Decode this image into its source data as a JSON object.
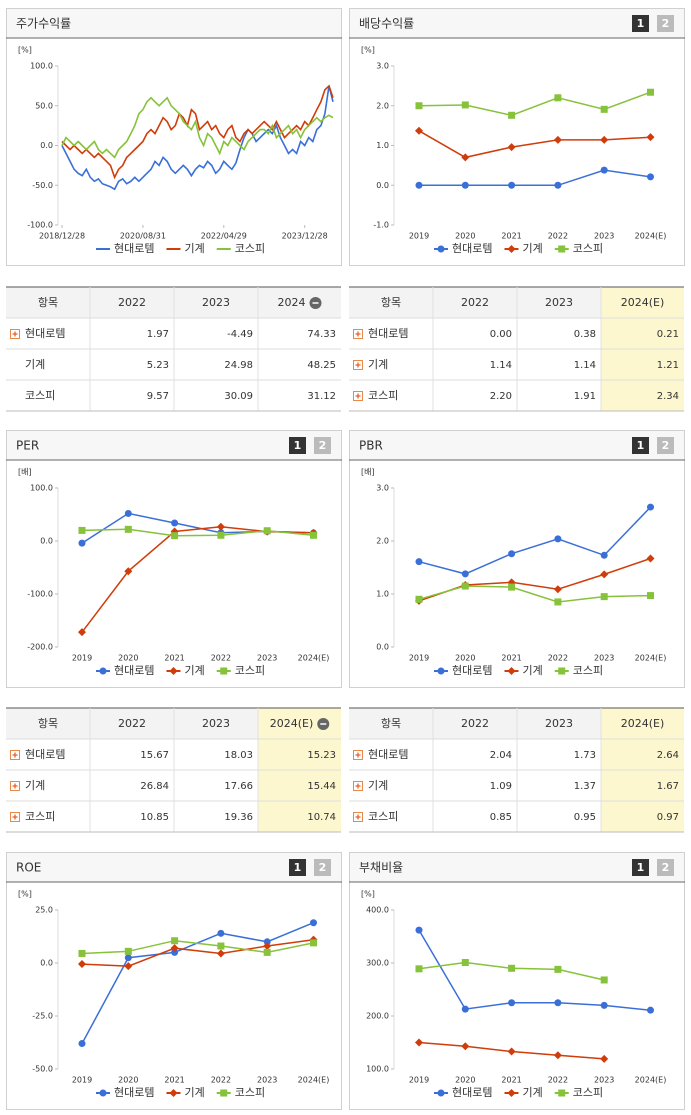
{
  "chart_data": [
    {
      "type": "timeseries",
      "title": "주가수익률",
      "unit": "[%]",
      "xlim": [
        0,
        67
      ],
      "xticks": [
        {
          "value": 0,
          "label": "2018/12/28"
        },
        {
          "value": 20,
          "label": "2020/08/31"
        },
        {
          "value": 40,
          "label": "2022/04/29"
        },
        {
          "value": 60,
          "label": "2023/12/28"
        }
      ],
      "ylim": [
        -100,
        100
      ],
      "yticks": [
        {
          "value": 100,
          "label": "100.0"
        },
        {
          "value": 50,
          "label": "50.0"
        },
        {
          "value": 0,
          "label": "0.0"
        },
        {
          "value": -50,
          "label": "-50.0"
        },
        {
          "value": -100,
          "label": "-100.0"
        }
      ],
      "markers": false,
      "series": [
        {
          "name": "현대로템",
          "color": "#3a6fd8",
          "values": [
            0,
            -10,
            -20,
            -30,
            -35,
            -38,
            -30,
            -40,
            -45,
            -42,
            -48,
            -50,
            -52,
            -55,
            -45,
            -42,
            -48,
            -45,
            -40,
            -45,
            -40,
            -35,
            -30,
            -20,
            -25,
            -15,
            -20,
            -30,
            -35,
            -30,
            -25,
            -30,
            -38,
            -30,
            -25,
            -28,
            -20,
            -25,
            -35,
            -30,
            -20,
            -25,
            -30,
            -22,
            -5,
            10,
            20,
            15,
            5,
            10,
            15,
            20,
            15,
            25,
            10,
            0,
            -10,
            -5,
            -10,
            5,
            0,
            10,
            5,
            20,
            25,
            40,
            75,
            55
          ]
        },
        {
          "name": "기계",
          "color": "#d03c0a",
          "values": [
            5,
            0,
            -5,
            0,
            -5,
            -10,
            -5,
            -10,
            -15,
            -10,
            -15,
            -20,
            -25,
            -40,
            -30,
            -25,
            -15,
            -10,
            -5,
            0,
            5,
            15,
            20,
            15,
            25,
            35,
            30,
            20,
            25,
            40,
            35,
            25,
            45,
            40,
            20,
            25,
            30,
            20,
            25,
            15,
            10,
            20,
            25,
            10,
            5,
            15,
            20,
            15,
            20,
            25,
            30,
            25,
            20,
            30,
            20,
            10,
            15,
            20,
            25,
            20,
            30,
            25,
            35,
            45,
            55,
            70,
            75,
            60
          ]
        },
        {
          "name": "코스피",
          "color": "#86c23a",
          "values": [
            0,
            10,
            5,
            0,
            5,
            0,
            -5,
            0,
            5,
            -5,
            -10,
            -5,
            -10,
            -15,
            -5,
            0,
            5,
            15,
            25,
            40,
            45,
            55,
            60,
            55,
            50,
            55,
            60,
            50,
            45,
            40,
            30,
            25,
            20,
            30,
            10,
            0,
            15,
            10,
            0,
            -10,
            5,
            0,
            10,
            5,
            0,
            -5,
            5,
            10,
            15,
            20,
            20,
            15,
            25,
            10,
            15,
            20,
            25,
            15,
            20,
            10,
            20,
            25,
            30,
            35,
            30,
            35,
            38,
            35
          ]
        }
      ]
    },
    {
      "type": "line",
      "title": "배당수익률",
      "unit": "[%]",
      "buttons": [
        "1",
        "2"
      ],
      "categories": [
        "2019",
        "2020",
        "2021",
        "2022",
        "2023",
        "2024(E)"
      ],
      "ylim": [
        -1,
        3
      ],
      "yticks": [
        {
          "value": 3,
          "label": "3.0"
        },
        {
          "value": 2,
          "label": "2.0"
        },
        {
          "value": 1,
          "label": "1.0"
        },
        {
          "value": 0,
          "label": "0.0"
        },
        {
          "value": -1,
          "label": "-1.0"
        }
      ],
      "markers": true,
      "series": [
        {
          "name": "현대로템",
          "color": "#3a6fd8",
          "values": [
            0,
            0,
            0,
            0,
            0.38,
            0.21
          ]
        },
        {
          "name": "기계",
          "color": "#d03c0a",
          "values": [
            1.37,
            0.7,
            0.96,
            1.14,
            1.14,
            1.21
          ]
        },
        {
          "name": "코스피",
          "color": "#86c23a",
          "values": [
            2.0,
            2.02,
            1.76,
            2.2,
            1.91,
            2.34
          ]
        }
      ]
    },
    {
      "type": "line",
      "title": "PER",
      "unit": "[배]",
      "buttons": [
        "1",
        "2"
      ],
      "categories": [
        "2019",
        "2020",
        "2021",
        "2022",
        "2023",
        "2024(E)"
      ],
      "ylim": [
        -200,
        100
      ],
      "yticks": [
        {
          "value": 100,
          "label": "100.0"
        },
        {
          "value": 0,
          "label": "0.0"
        },
        {
          "value": -100,
          "label": "-100.0"
        },
        {
          "value": -200,
          "label": "-200.0"
        }
      ],
      "markers": true,
      "series": [
        {
          "name": "현대로템",
          "color": "#3a6fd8",
          "values": [
            -4,
            52,
            34,
            15.67,
            18.03,
            15.23
          ]
        },
        {
          "name": "기계",
          "color": "#d03c0a",
          "values": [
            -172,
            -57,
            18,
            26.84,
            17.66,
            15.44
          ]
        },
        {
          "name": "코스피",
          "color": "#86c23a",
          "values": [
            20,
            22,
            10,
            10.85,
            19.36,
            10.74
          ]
        }
      ]
    },
    {
      "type": "line",
      "title": "PBR",
      "unit": "[배]",
      "buttons": [
        "1",
        "2"
      ],
      "categories": [
        "2019",
        "2020",
        "2021",
        "2022",
        "2023",
        "2024(E)"
      ],
      "ylim": [
        0,
        3
      ],
      "yticks": [
        {
          "value": 3,
          "label": "3.0"
        },
        {
          "value": 2,
          "label": "2.0"
        },
        {
          "value": 1,
          "label": "1.0"
        },
        {
          "value": 0,
          "label": "0.0"
        }
      ],
      "markers": true,
      "series": [
        {
          "name": "현대로템",
          "color": "#3a6fd8",
          "values": [
            1.61,
            1.38,
            1.76,
            2.04,
            1.73,
            2.64
          ]
        },
        {
          "name": "기계",
          "color": "#d03c0a",
          "values": [
            0.87,
            1.17,
            1.22,
            1.09,
            1.37,
            1.67
          ]
        },
        {
          "name": "코스피",
          "color": "#86c23a",
          "values": [
            0.9,
            1.15,
            1.13,
            0.85,
            0.95,
            0.97
          ]
        }
      ]
    },
    {
      "type": "line",
      "title": "ROE",
      "unit": "[%]",
      "buttons": [
        "1",
        "2"
      ],
      "categories": [
        "2019",
        "2020",
        "2021",
        "2022",
        "2023",
        "2024(E)"
      ],
      "ylim": [
        -50,
        25
      ],
      "yticks": [
        {
          "value": 25,
          "label": "25.0"
        },
        {
          "value": 0,
          "label": "0.0"
        },
        {
          "value": -25,
          "label": "-25.0"
        },
        {
          "value": -50,
          "label": "-50.0"
        }
      ],
      "markers": true,
      "series": [
        {
          "name": "현대로템",
          "color": "#3a6fd8",
          "values": [
            -38,
            2.5,
            5,
            14,
            10,
            19
          ]
        },
        {
          "name": "기계",
          "color": "#d03c0a",
          "values": [
            -0.5,
            -1.5,
            7,
            4.5,
            8,
            11
          ]
        },
        {
          "name": "코스피",
          "color": "#86c23a",
          "values": [
            4.5,
            5.5,
            10.5,
            8,
            5,
            9.5
          ]
        }
      ]
    },
    {
      "type": "line",
      "title": "부채비율",
      "unit": "[%]",
      "buttons": [
        "1",
        "2"
      ],
      "categories": [
        "2019",
        "2020",
        "2021",
        "2022",
        "2023",
        "2024(E)"
      ],
      "ylim": [
        100,
        400
      ],
      "yticks": [
        {
          "value": 400,
          "label": "400.0"
        },
        {
          "value": 300,
          "label": "300.0"
        },
        {
          "value": 200,
          "label": "200.0"
        },
        {
          "value": 100,
          "label": "100.0"
        }
      ],
      "markers": true,
      "series": [
        {
          "name": "현대로템",
          "color": "#3a6fd8",
          "values": [
            362,
            213,
            225,
            225,
            220,
            211
          ]
        },
        {
          "name": "기계",
          "color": "#d03c0a",
          "values": [
            150,
            143,
            133,
            126,
            119,
            null
          ]
        },
        {
          "name": "코스피",
          "color": "#86c23a",
          "values": [
            289,
            301,
            290,
            288,
            268,
            null
          ]
        }
      ]
    }
  ],
  "tables": [
    {
      "header": [
        "항목",
        "2022",
        "2023",
        "2024"
      ],
      "collapse": true,
      "highlight_last": false,
      "rows": [
        {
          "plus": true,
          "cells": [
            "현대로템",
            "1.97",
            "-4.49",
            "74.33"
          ]
        },
        {
          "plus": false,
          "cells": [
            "기계",
            "5.23",
            "24.98",
            "48.25"
          ]
        },
        {
          "plus": false,
          "cells": [
            "코스피",
            "9.57",
            "30.09",
            "31.12"
          ]
        }
      ]
    },
    {
      "header": [
        "항목",
        "2022",
        "2023",
        "2024(E)"
      ],
      "collapse": false,
      "highlight_last": true,
      "rows": [
        {
          "plus": true,
          "cells": [
            "현대로템",
            "0.00",
            "0.38",
            "0.21"
          ]
        },
        {
          "plus": true,
          "cells": [
            "기계",
            "1.14",
            "1.14",
            "1.21"
          ]
        },
        {
          "plus": true,
          "cells": [
            "코스피",
            "2.20",
            "1.91",
            "2.34"
          ]
        }
      ]
    },
    {
      "header": [
        "항목",
        "2022",
        "2023",
        "2024(E)"
      ],
      "collapse": true,
      "highlight_last": true,
      "rows": [
        {
          "plus": true,
          "cells": [
            "현대로템",
            "15.67",
            "18.03",
            "15.23"
          ]
        },
        {
          "plus": true,
          "cells": [
            "기계",
            "26.84",
            "17.66",
            "15.44"
          ]
        },
        {
          "plus": true,
          "cells": [
            "코스피",
            "10.85",
            "19.36",
            "10.74"
          ]
        }
      ]
    },
    {
      "header": [
        "항목",
        "2022",
        "2023",
        "2024(E)"
      ],
      "collapse": false,
      "highlight_last": true,
      "rows": [
        {
          "plus": true,
          "cells": [
            "현대로템",
            "2.04",
            "1.73",
            "2.64"
          ]
        },
        {
          "plus": true,
          "cells": [
            "기계",
            "1.09",
            "1.37",
            "1.67"
          ]
        },
        {
          "plus": true,
          "cells": [
            "코스피",
            "0.85",
            "0.95",
            "0.97"
          ]
        }
      ]
    }
  ]
}
